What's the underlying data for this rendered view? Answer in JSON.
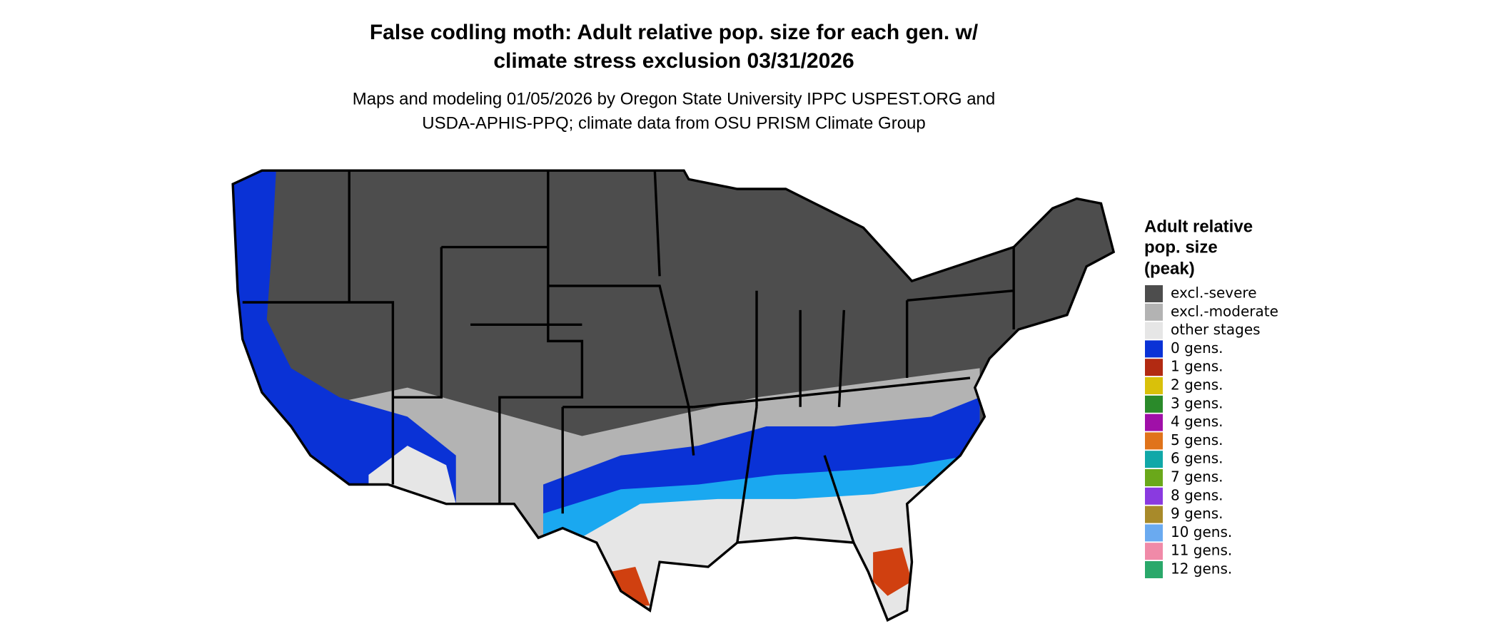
{
  "header": {
    "title": [
      "False codling moth: Adult relative pop. size for each gen. w/",
      "climate stress exclusion 03/31/2026"
    ],
    "subtitle": [
      "Maps and modeling 01/05/2026 by Oregon State University IPPC USPEST.ORG and",
      "USDA-APHIS-PPQ; climate data from OSU PRISM Climate Group"
    ]
  },
  "legend": {
    "title": [
      "Adult relative",
      "pop. size",
      "(peak)"
    ],
    "items": [
      {
        "label": "excl.-severe",
        "color": "#4d4d4d"
      },
      {
        "label": "excl.-moderate",
        "color": "#b3b3b3"
      },
      {
        "label": "other stages",
        "color": "#e6e6e6"
      },
      {
        "label": "0 gens.",
        "color": "#0a32d6"
      },
      {
        "label": "1 gens.",
        "color": "#b22a12"
      },
      {
        "label": "2 gens.",
        "color": "#d9c10a"
      },
      {
        "label": "3 gens.",
        "color": "#2a8a2a"
      },
      {
        "label": "4 gens.",
        "color": "#a010a8"
      },
      {
        "label": "5 gens.",
        "color": "#e0731a"
      },
      {
        "label": "6 gens.",
        "color": "#10a8a8"
      },
      {
        "label": "7 gens.",
        "color": "#6aa81a"
      },
      {
        "label": "8 gens.",
        "color": "#8a3ae0"
      },
      {
        "label": "9 gens.",
        "color": "#a88a2a"
      },
      {
        "label": "10 gens.",
        "color": "#6aaaf0"
      },
      {
        "label": "11 gens.",
        "color": "#f08aa8"
      },
      {
        "label": "12 gens.",
        "color": "#2aa86a"
      }
    ]
  }
}
